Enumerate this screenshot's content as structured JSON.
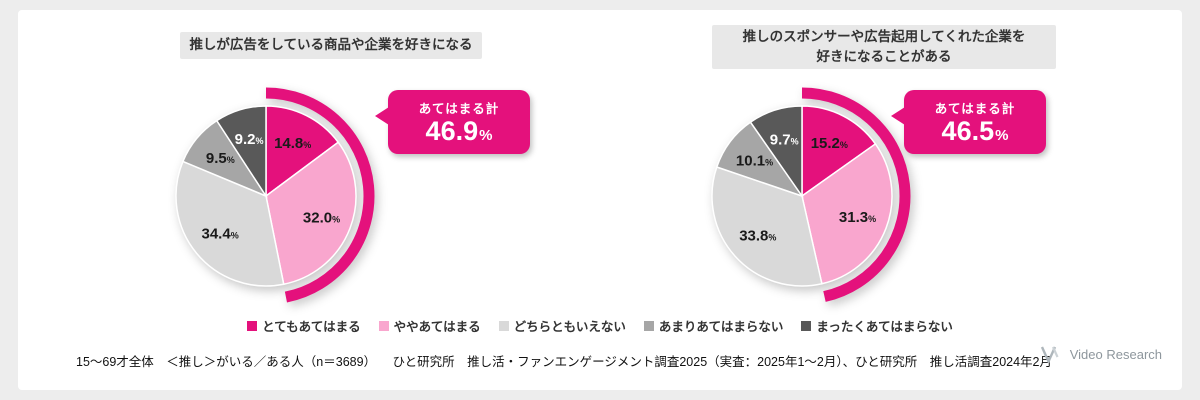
{
  "style": {
    "accent": "#e4117c",
    "slice_colors": [
      "#e4117c",
      "#f9a6ce",
      "#d9d9d9",
      "#a6a6a6",
      "#595959"
    ],
    "label_colors": [
      "#1a1a1a",
      "#1a1a1a",
      "#1a1a1a",
      "#1a1a1a",
      "#ffffff"
    ],
    "page_bg": "#ededed",
    "card_bg": "#ffffff",
    "title_box_bg": "#e8e8e8"
  },
  "chart_data": [
    {
      "type": "pie",
      "title": "推しが広告をしている商品や企業を好きになる",
      "title_lines": [
        "推しが広告をしている商品や企業を好きになる"
      ],
      "categories": [
        "とてもあてはまる",
        "ややあてはまる",
        "どちらともいえない",
        "あまりあてはまらない",
        "まったくあてはまらない"
      ],
      "values": [
        14.8,
        32.0,
        34.4,
        9.5,
        9.2
      ],
      "value_labels": [
        "14.8",
        "32.0",
        "34.4",
        "9.5",
        "9.2"
      ],
      "unit": "%",
      "start_angle_deg": 0,
      "direction": "clockwise",
      "callout": {
        "label": "あてはまる計",
        "value": "46.9",
        "unit": "%",
        "percent": 46.9
      }
    },
    {
      "type": "pie",
      "title": "推しのスポンサーや広告起用してくれた企業を好きになることがある",
      "title_lines": [
        "推しのスポンサーや広告起用してくれた企業を",
        "好きになることがある"
      ],
      "categories": [
        "とてもあてはまる",
        "ややあてはまる",
        "どちらともいえない",
        "あまりあてはまらない",
        "まったくあてはまらない"
      ],
      "values": [
        15.2,
        31.3,
        33.8,
        10.1,
        9.7
      ],
      "value_labels": [
        "15.2",
        "31.3",
        "33.8",
        "10.1",
        "9.7"
      ],
      "unit": "%",
      "start_angle_deg": 0,
      "direction": "clockwise",
      "callout": {
        "label": "あてはまる計",
        "value": "46.5",
        "unit": "%",
        "percent": 46.5
      }
    }
  ],
  "legend": {
    "items": [
      {
        "label": "とてもあてはまる",
        "color": "#e4117c"
      },
      {
        "label": "ややあてはまる",
        "color": "#f9a6ce"
      },
      {
        "label": "どちらともいえない",
        "color": "#d9d9d9"
      },
      {
        "label": "あまりあてはまらない",
        "color": "#a6a6a6"
      },
      {
        "label": "まったくあてはまらない",
        "color": "#595959"
      }
    ]
  },
  "footer": {
    "left": "15～69才全体　＜推し＞がいる／ある人（n＝3689）",
    "right": "ひと研究所　推し活・ファンエンゲージメント調査2025（実査：2025年1～2月）、ひと研究所　推し活調査2024年2月"
  },
  "logo": {
    "text": "Video Research"
  }
}
